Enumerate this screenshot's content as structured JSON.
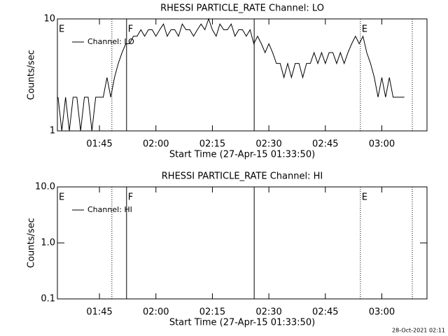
{
  "chart_data": [
    {
      "type": "line",
      "title": "RHESSI PARTICLE_RATE Channel: LO",
      "xlabel": "Start Time (27-Apr-15 01:33:50)",
      "ylabel": "Counts/sec",
      "log_y": true,
      "color": "#000000",
      "xlim": [
        93.83,
        192
      ],
      "ylim": [
        1,
        10
      ],
      "xticks": [
        {
          "value": 105,
          "label": "01:45"
        },
        {
          "value": 120,
          "label": "02:00"
        },
        {
          "value": 135,
          "label": "02:15"
        },
        {
          "value": 150,
          "label": "02:30"
        },
        {
          "value": 165,
          "label": "02:45"
        },
        {
          "value": 180,
          "label": "03:00"
        }
      ],
      "yticks": [
        1,
        10
      ],
      "markers": [
        {
          "x": 93.83,
          "style": "solid",
          "label": "E"
        },
        {
          "x": 108.3,
          "style": "dotted"
        },
        {
          "x": 112.2,
          "style": "solid",
          "label": "F"
        },
        {
          "x": 146.1,
          "style": "solid"
        },
        {
          "x": 174.3,
          "style": "dotted",
          "label": "E"
        },
        {
          "x": 188.1,
          "style": "dotted"
        }
      ],
      "x": [
        94,
        95,
        96,
        97,
        98,
        99,
        100,
        101,
        102,
        103,
        104,
        105,
        106,
        107,
        108,
        109,
        110,
        111,
        112,
        113,
        114,
        115,
        116,
        117,
        118,
        119,
        120,
        121,
        122,
        123,
        124,
        125,
        126,
        127,
        128,
        129,
        130,
        131,
        132,
        133,
        134,
        135,
        136,
        137,
        138,
        139,
        140,
        141,
        142,
        143,
        144,
        145,
        146,
        147,
        148,
        149,
        150,
        151,
        152,
        153,
        154,
        155,
        156,
        157,
        158,
        159,
        160,
        161,
        162,
        163,
        164,
        165,
        166,
        167,
        168,
        169,
        170,
        171,
        172,
        173,
        174,
        175,
        176,
        177,
        178,
        179,
        180,
        181,
        182,
        183,
        184,
        185,
        186
      ],
      "series": [
        {
          "name": "Channel: LO",
          "values": [
            2,
            1,
            2,
            1,
            2,
            2,
            1,
            2,
            2,
            1,
            2,
            2,
            2,
            3,
            2,
            3,
            4,
            5,
            6,
            6,
            7,
            7,
            8,
            7,
            8,
            8,
            7,
            8,
            9,
            7,
            8,
            8,
            7,
            9,
            8,
            8,
            7,
            8,
            9,
            8,
            10,
            8,
            7,
            9,
            8,
            8,
            9,
            7,
            8,
            8,
            7,
            8,
            6,
            7,
            6,
            5,
            6,
            5,
            4,
            4,
            3,
            4,
            3,
            4,
            4,
            3,
            4,
            4,
            5,
            4,
            5,
            4,
            5,
            5,
            4,
            5,
            4,
            5,
            6,
            7,
            6,
            7,
            5,
            4,
            3,
            2,
            3,
            2,
            3,
            2,
            2,
            2,
            2
          ]
        }
      ]
    },
    {
      "type": "line",
      "title": "RHESSI PARTICLE_RATE Channel: HI",
      "xlabel": "Start Time (27-Apr-15 01:33:50)",
      "ylabel": "Counts/sec",
      "log_y": true,
      "color": "#000000",
      "xlim": [
        93.83,
        192
      ],
      "ylim": [
        0.1,
        10
      ],
      "xticks": [
        {
          "value": 105,
          "label": "01:45"
        },
        {
          "value": 120,
          "label": "02:00"
        },
        {
          "value": 135,
          "label": "02:15"
        },
        {
          "value": 150,
          "label": "02:30"
        },
        {
          "value": 165,
          "label": "02:45"
        },
        {
          "value": 180,
          "label": "03:00"
        }
      ],
      "yticks": [
        0.1,
        {
          "value": 1,
          "label": "1.0"
        },
        {
          "value": 10,
          "label": "10.0"
        }
      ],
      "markers": [
        {
          "x": 93.83,
          "style": "solid",
          "label": "E"
        },
        {
          "x": 108.3,
          "style": "dotted"
        },
        {
          "x": 112.2,
          "style": "solid",
          "label": "F"
        },
        {
          "x": 146.1,
          "style": "solid"
        },
        {
          "x": 174.3,
          "style": "dotted",
          "label": "E"
        },
        {
          "x": 188.1,
          "style": "dotted"
        }
      ],
      "x": [],
      "series": [
        {
          "name": "Channel: HI",
          "values": []
        }
      ]
    }
  ],
  "footer": "28-Oct-2021 02:11"
}
